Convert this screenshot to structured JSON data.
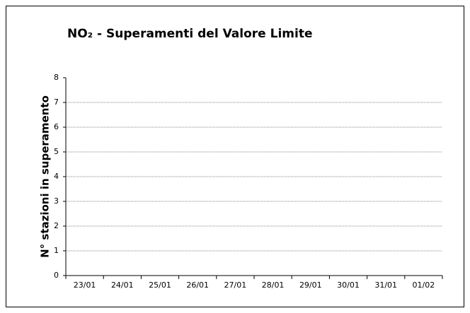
{
  "chart_data": {
    "type": "bar",
    "title": "NO₂ - Superamenti del Valore Limite",
    "y_label": "N° stazioni in superamento",
    "categories": [
      "23/01",
      "24/01",
      "25/01",
      "26/01",
      "27/01",
      "28/01",
      "29/01",
      "30/01",
      "31/01",
      "01/02"
    ],
    "values": [
      0,
      0,
      0,
      0,
      0,
      0,
      0,
      0,
      0,
      0
    ],
    "color": "#4472c4",
    "ylim": [
      0,
      8
    ],
    "yticks": [
      0,
      1,
      2,
      3,
      4,
      5,
      6,
      7,
      8
    ],
    "grid": true
  }
}
